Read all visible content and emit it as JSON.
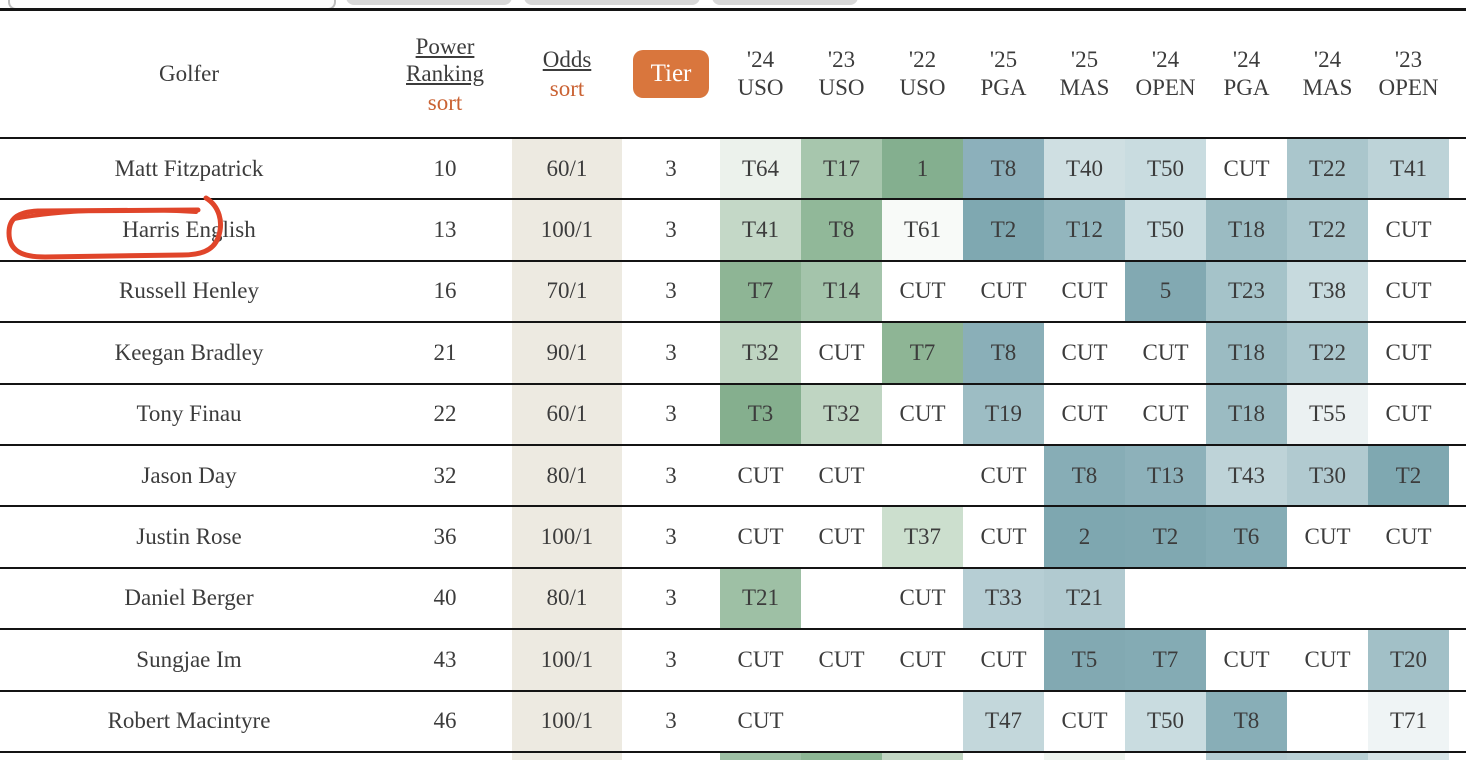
{
  "colors": {
    "accent_orange": "#d9763d",
    "sort_orange": "#ca6233",
    "odds_bg": "#edeae1",
    "border": "#141414",
    "text": "#3c3c3c",
    "annotation_red": "#e0452a"
  },
  "header": {
    "golfer": "Golfer",
    "power_line1": "Power",
    "power_line2": "Ranking",
    "power_sort": "sort",
    "odds": "Odds",
    "odds_sort": "sort",
    "tier": "Tier",
    "events": [
      {
        "year": "'24",
        "event": "USO"
      },
      {
        "year": "'23",
        "event": "USO"
      },
      {
        "year": "'22",
        "event": "USO"
      },
      {
        "year": "'25",
        "event": "PGA"
      },
      {
        "year": "'25",
        "event": "MAS"
      },
      {
        "year": "'24",
        "event": "OPEN"
      },
      {
        "year": "'24",
        "event": "PGA"
      },
      {
        "year": "'24",
        "event": "MAS"
      },
      {
        "year": "'23",
        "event": "OPEN"
      }
    ]
  },
  "rows": [
    {
      "golfer": "Matt Fitzpatrick",
      "power_ranking": "10",
      "odds": "60/1",
      "tier": "3",
      "results": [
        {
          "v": "T64",
          "c": "#ecf2ec"
        },
        {
          "v": "T17",
          "c": "#a7c6ad"
        },
        {
          "v": "1",
          "c": "#84af8f"
        },
        {
          "v": "T8",
          "c": "#8cb0bb"
        },
        {
          "v": "T40",
          "c": "#cfdfe2"
        },
        {
          "v": "T50",
          "c": "#c9dce0"
        },
        {
          "v": "CUT",
          "c": ""
        },
        {
          "v": "T22",
          "c": "#aac6cc"
        },
        {
          "v": "T41",
          "c": "#bdd3d8"
        }
      ]
    },
    {
      "golfer": "Harris English",
      "power_ranking": "13",
      "odds": "100/1",
      "tier": "3",
      "results": [
        {
          "v": "T41",
          "c": "#c4d8c7"
        },
        {
          "v": "T8",
          "c": "#91b899"
        },
        {
          "v": "T61",
          "c": "#f8faf8"
        },
        {
          "v": "T2",
          "c": "#7fa8b1"
        },
        {
          "v": "T12",
          "c": "#93b6be"
        },
        {
          "v": "T50",
          "c": "#c9dce0"
        },
        {
          "v": "T18",
          "c": "#9bbbc2"
        },
        {
          "v": "T22",
          "c": "#aac6cc"
        },
        {
          "v": "CUT",
          "c": ""
        }
      ]
    },
    {
      "golfer": "Russell Henley",
      "power_ranking": "16",
      "odds": "70/1",
      "tier": "3",
      "results": [
        {
          "v": "T7",
          "c": "#8eb595"
        },
        {
          "v": "T14",
          "c": "#a4c4ab"
        },
        {
          "v": "CUT",
          "c": ""
        },
        {
          "v": "CUT",
          "c": ""
        },
        {
          "v": "CUT",
          "c": ""
        },
        {
          "v": "5",
          "c": "#82a9b2"
        },
        {
          "v": "T23",
          "c": "#a5c3c9"
        },
        {
          "v": "T38",
          "c": "#c7dade"
        },
        {
          "v": "CUT",
          "c": ""
        }
      ]
    },
    {
      "golfer": "Keegan Bradley",
      "power_ranking": "21",
      "odds": "90/1",
      "tier": "3",
      "results": [
        {
          "v": "T32",
          "c": "#bfd5c2"
        },
        {
          "v": "CUT",
          "c": ""
        },
        {
          "v": "T7",
          "c": "#8eb595"
        },
        {
          "v": "T8",
          "c": "#8aafb8"
        },
        {
          "v": "CUT",
          "c": ""
        },
        {
          "v": "CUT",
          "c": ""
        },
        {
          "v": "T18",
          "c": "#9bbbc2"
        },
        {
          "v": "T22",
          "c": "#aac6cc"
        },
        {
          "v": "CUT",
          "c": ""
        }
      ]
    },
    {
      "golfer": "Tony Finau",
      "power_ranking": "22",
      "odds": "60/1",
      "tier": "3",
      "results": [
        {
          "v": "T3",
          "c": "#85af8e"
        },
        {
          "v": "T32",
          "c": "#bfd5c2"
        },
        {
          "v": "CUT",
          "c": ""
        },
        {
          "v": "T19",
          "c": "#9dbdc4"
        },
        {
          "v": "CUT",
          "c": ""
        },
        {
          "v": "CUT",
          "c": ""
        },
        {
          "v": "T18",
          "c": "#9bbbc2"
        },
        {
          "v": "T55",
          "c": "#ebf1f2"
        },
        {
          "v": "CUT",
          "c": ""
        }
      ]
    },
    {
      "golfer": "Jason Day",
      "power_ranking": "32",
      "odds": "80/1",
      "tier": "3",
      "results": [
        {
          "v": "CUT",
          "c": ""
        },
        {
          "v": "CUT",
          "c": ""
        },
        {
          "v": "",
          "c": ""
        },
        {
          "v": "CUT",
          "c": ""
        },
        {
          "v": "T8",
          "c": "#87adb6"
        },
        {
          "v": "T13",
          "c": "#8db1ba"
        },
        {
          "v": "T43",
          "c": "#bed3d8"
        },
        {
          "v": "T30",
          "c": "#b1cad0"
        },
        {
          "v": "T2",
          "c": "#7fa8b1"
        }
      ]
    },
    {
      "golfer": "Justin Rose",
      "power_ranking": "36",
      "odds": "100/1",
      "tier": "3",
      "results": [
        {
          "v": "CUT",
          "c": ""
        },
        {
          "v": "CUT",
          "c": ""
        },
        {
          "v": "T37",
          "c": "#ccdfce"
        },
        {
          "v": "CUT",
          "c": ""
        },
        {
          "v": "2",
          "c": "#7ea7b0"
        },
        {
          "v": "T2",
          "c": "#80a8b1"
        },
        {
          "v": "T6",
          "c": "#85acb5"
        },
        {
          "v": "CUT",
          "c": ""
        },
        {
          "v": "CUT",
          "c": ""
        }
      ]
    },
    {
      "golfer": "Daniel Berger",
      "power_ranking": "40",
      "odds": "80/1",
      "tier": "3",
      "results": [
        {
          "v": "T21",
          "c": "#9ec0a5"
        },
        {
          "v": "",
          "c": ""
        },
        {
          "v": "CUT",
          "c": ""
        },
        {
          "v": "T33",
          "c": "#b6ced4"
        },
        {
          "v": "T21",
          "c": "#b1cad0"
        },
        {
          "v": "",
          "c": ""
        },
        {
          "v": "",
          "c": ""
        },
        {
          "v": "",
          "c": ""
        },
        {
          "v": "",
          "c": ""
        }
      ]
    },
    {
      "golfer": "Sungjae Im",
      "power_ranking": "43",
      "odds": "100/1",
      "tier": "3",
      "results": [
        {
          "v": "CUT",
          "c": ""
        },
        {
          "v": "CUT",
          "c": ""
        },
        {
          "v": "CUT",
          "c": ""
        },
        {
          "v": "CUT",
          "c": ""
        },
        {
          "v": "T5",
          "c": "#82a9b2"
        },
        {
          "v": "T7",
          "c": "#84abb4"
        },
        {
          "v": "CUT",
          "c": ""
        },
        {
          "v": "CUT",
          "c": ""
        },
        {
          "v": "T20",
          "c": "#a2c0c7"
        }
      ]
    },
    {
      "golfer": "Robert Macintyre",
      "power_ranking": "46",
      "odds": "100/1",
      "tier": "3",
      "results": [
        {
          "v": "CUT",
          "c": ""
        },
        {
          "v": "",
          "c": ""
        },
        {
          "v": "",
          "c": ""
        },
        {
          "v": "T47",
          "c": "#c3d7db"
        },
        {
          "v": "CUT",
          "c": ""
        },
        {
          "v": "T50",
          "c": "#c9dce0"
        },
        {
          "v": "T8",
          "c": "#88aeb7"
        },
        {
          "v": "",
          "c": ""
        },
        {
          "v": "T71",
          "c": "#eff4f5"
        }
      ]
    }
  ],
  "partial_row_colors": [
    "#9dbfa4",
    "#8db795",
    "#c3d7c5",
    "",
    "#eef4ef",
    "",
    "#b5cdd3",
    "#b9d0d5",
    "#d6e3e6"
  ],
  "annotation": {
    "target_golfer": "Harris English",
    "shape": "hand-drawn-circle",
    "color": "#e0452a"
  }
}
